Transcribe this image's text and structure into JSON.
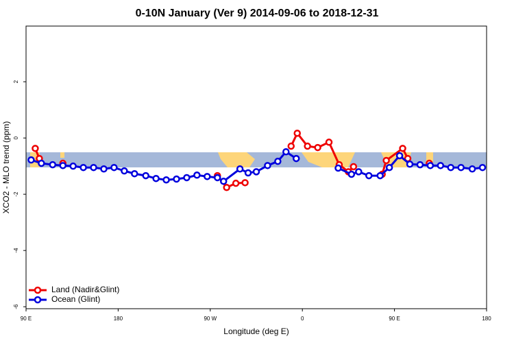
{
  "chart_data": {
    "type": "line",
    "title": "0-10N January (Ver 9)   2014-09-06 to 2018-12-31",
    "x_label": "Longitude (deg E)",
    "y_label": "XCO2 - MLO trend (ppm)",
    "xlim": [
      90,
      540
    ],
    "ylim": [
      -6.07,
      3.98
    ],
    "xticks": [
      {
        "value": 90,
        "label": "90 E"
      },
      180,
      {
        "value": 270,
        "label": "90 W"
      },
      {
        "value": 360,
        "label": "0"
      },
      {
        "value": 450,
        "label": "90 E"
      },
      {
        "value": 540,
        "label": "180"
      }
    ],
    "yticks": [
      -6,
      -4,
      -2,
      0,
      2
    ],
    "legend": "bottom-left",
    "series": [
      {
        "name": "Land (Nadir&Glint)",
        "color": "#ee0000",
        "x": [
          99,
          103,
          115,
          126,
          200,
          277,
          286,
          295,
          304,
          326,
          349,
          355,
          365,
          375,
          386,
          396,
          405,
          410,
          424,
          438,
          442,
          458,
          463,
          473,
          484
        ],
        "values": [
          -0.37,
          -0.73,
          null,
          -0.9,
          null,
          -1.34,
          -1.76,
          -1.61,
          -1.59,
          null,
          -0.29,
          0.17,
          -0.29,
          -0.34,
          -0.15,
          -0.95,
          -1.2,
          -1.02,
          null,
          -1.29,
          -0.8,
          -0.37,
          -0.73,
          null,
          -0.9
        ]
      },
      {
        "name": "Ocean (Glint)",
        "color": "#0000dd",
        "x": [
          95,
          105,
          116,
          126,
          136,
          146,
          156,
          166,
          176,
          186,
          196,
          207,
          217,
          227,
          237,
          247,
          257,
          267,
          277,
          283,
          299,
          307,
          315,
          326,
          336,
          344,
          354,
          375,
          395,
          408,
          415,
          425,
          436,
          445,
          455,
          465,
          475,
          485,
          495,
          505,
          515,
          526,
          536
        ],
        "values": [
          -0.78,
          -0.9,
          -0.95,
          -0.98,
          -1.0,
          -1.05,
          -1.05,
          -1.1,
          -1.05,
          -1.17,
          -1.27,
          -1.34,
          -1.44,
          -1.49,
          -1.46,
          -1.41,
          -1.32,
          -1.37,
          -1.41,
          -1.54,
          -1.1,
          -1.24,
          -1.2,
          -0.98,
          -0.83,
          -0.49,
          -0.73,
          null,
          -1.07,
          -1.29,
          -1.2,
          -1.34,
          -1.34,
          -1.05,
          -0.63,
          -0.93,
          -0.95,
          -0.98,
          -0.98,
          -1.05,
          -1.05,
          -1.1,
          -1.05
        ]
      }
    ]
  }
}
